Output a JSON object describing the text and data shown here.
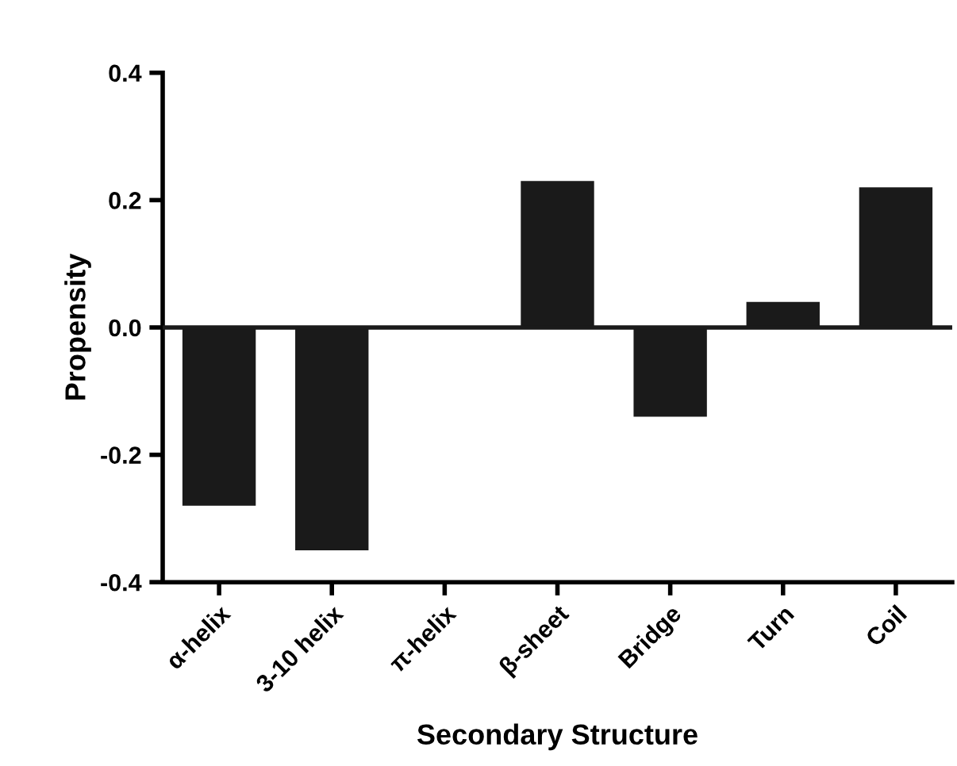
{
  "chart_data": {
    "type": "bar",
    "xlabel": "Secondary Structure",
    "ylabel": "Propensity",
    "categories": [
      "α-helix",
      "3-10 helix",
      "π-helix",
      "β-sheet",
      "Bridge",
      "Turn",
      "Coil"
    ],
    "values": [
      -0.28,
      -0.35,
      0,
      0.23,
      -0.14,
      0.04,
      0.22
    ],
    "color": "#1a1a1a",
    "ylim": [
      -0.4,
      0.4
    ],
    "yticks": [
      {
        "value": -0.4,
        "label": "-0.4"
      },
      {
        "value": -0.2,
        "label": "-0.2"
      },
      {
        "value": 0,
        "label": "0.0"
      },
      {
        "value": 0.2,
        "label": "0.2"
      },
      {
        "value": 0.4,
        "label": "0.4"
      }
    ],
    "grid": false,
    "ref_lines": [
      {
        "axis": "y",
        "value": 0,
        "color": "#1a1a1a"
      }
    ]
  }
}
